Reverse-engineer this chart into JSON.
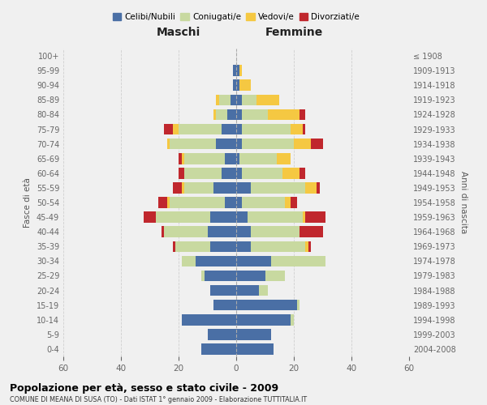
{
  "age_groups": [
    "0-4",
    "5-9",
    "10-14",
    "15-19",
    "20-24",
    "25-29",
    "30-34",
    "35-39",
    "40-44",
    "45-49",
    "50-54",
    "55-59",
    "60-64",
    "65-69",
    "70-74",
    "75-79",
    "80-84",
    "85-89",
    "90-94",
    "95-99",
    "100+"
  ],
  "birth_years": [
    "2004-2008",
    "1999-2003",
    "1994-1998",
    "1989-1993",
    "1984-1988",
    "1979-1983",
    "1974-1978",
    "1969-1973",
    "1964-1968",
    "1959-1963",
    "1954-1958",
    "1949-1953",
    "1944-1948",
    "1939-1943",
    "1934-1938",
    "1929-1933",
    "1924-1928",
    "1919-1923",
    "1914-1918",
    "1909-1913",
    "≤ 1908"
  ],
  "maschi": {
    "celibi": [
      12,
      10,
      19,
      8,
      9,
      11,
      14,
      9,
      10,
      9,
      4,
      8,
      5,
      4,
      7,
      5,
      3,
      2,
      1,
      1,
      0
    ],
    "coniugati": [
      0,
      0,
      0,
      0,
      0,
      1,
      5,
      12,
      15,
      19,
      19,
      10,
      13,
      14,
      16,
      15,
      4,
      4,
      0,
      0,
      0
    ],
    "vedove": [
      0,
      0,
      0,
      0,
      0,
      0,
      0,
      0,
      0,
      0,
      1,
      1,
      0,
      1,
      1,
      2,
      1,
      1,
      0,
      0,
      0
    ],
    "divorziate": [
      0,
      0,
      0,
      0,
      0,
      0,
      0,
      1,
      1,
      4,
      3,
      3,
      2,
      1,
      0,
      3,
      0,
      0,
      0,
      0,
      0
    ]
  },
  "femmine": {
    "nubili": [
      13,
      12,
      19,
      21,
      8,
      10,
      12,
      5,
      5,
      4,
      2,
      5,
      2,
      1,
      2,
      2,
      2,
      2,
      1,
      1,
      0
    ],
    "coniugate": [
      0,
      0,
      1,
      1,
      3,
      7,
      19,
      19,
      17,
      19,
      15,
      19,
      14,
      13,
      18,
      17,
      9,
      5,
      0,
      0,
      0
    ],
    "vedove": [
      0,
      0,
      0,
      0,
      0,
      0,
      0,
      1,
      0,
      1,
      2,
      4,
      6,
      5,
      6,
      4,
      11,
      8,
      4,
      1,
      0
    ],
    "divorziate": [
      0,
      0,
      0,
      0,
      0,
      0,
      0,
      1,
      8,
      7,
      2,
      1,
      2,
      0,
      4,
      1,
      2,
      0,
      0,
      0,
      0
    ]
  },
  "colors": {
    "celibi": "#4a6fa5",
    "coniugati": "#c8d9a0",
    "vedove": "#f5c842",
    "divorziate": "#c0272d"
  },
  "legend_labels": [
    "Celibi/Nubili",
    "Coniugati/e",
    "Vedovi/e",
    "Divorziati/e"
  ],
  "legend_colors": [
    "#4a6fa5",
    "#c8d9a0",
    "#f5c842",
    "#c0272d"
  ],
  "title": "Popolazione per età, sesso e stato civile - 2009",
  "subtitle": "COMUNE DI MEANA DI SUSA (TO) - Dati ISTAT 1° gennaio 2009 - Elaborazione TUTTITALIA.IT",
  "xlabel_left": "Maschi",
  "xlabel_right": "Femmine",
  "ylabel_left": "Fasce di età",
  "ylabel_right": "Anni di nascita",
  "xlim": 60,
  "bg_color": "#f0f0f0",
  "bar_height": 0.75
}
